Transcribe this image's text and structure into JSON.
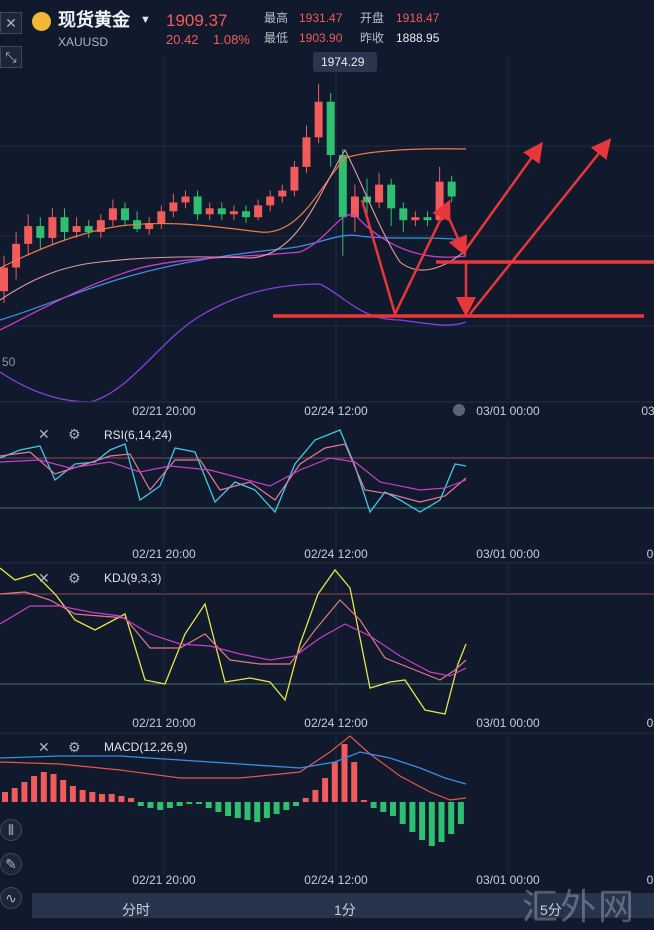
{
  "header": {
    "instrument_name": "现货黄金",
    "symbol": "XAUUSD",
    "price": "1909.37",
    "change": "20.42",
    "change_pct": "1.08%",
    "high_label": "最高",
    "high_value": "1931.47",
    "open_label": "开盘",
    "open_value": "1918.47",
    "low_label": "最低",
    "low_value": "1903.90",
    "prev_label": "昨收",
    "prev_value": "1888.95"
  },
  "main_chart": {
    "peak_label": "1974.29",
    "axis_side_label": "50",
    "ticks": [
      "02/21 20:00",
      "02/24 12:00",
      "03/01 00:00",
      "03"
    ]
  },
  "rsi": {
    "title": "RSI(6,14,24)",
    "ticks": [
      "02/21 20:00",
      "02/24 12:00",
      "03/01 00:00",
      "0"
    ]
  },
  "kdj": {
    "title": "KDJ(9,3,3)",
    "ticks": [
      "02/21 20:00",
      "02/24 12:00",
      "03/01 00:00",
      "0"
    ]
  },
  "macd": {
    "title": "MACD(12,26,9)",
    "ticks": [
      "02/21 20:00",
      "02/24 12:00",
      "03/01 00:00",
      "0"
    ]
  },
  "bottom_bar": {
    "tab1": "分时",
    "tab2": "1分",
    "tab3": "5分"
  },
  "watermark": "汇外网",
  "colors": {
    "up": "#f25b5b",
    "down": "#2fbf71",
    "background": "#101a2c"
  },
  "chart_data": {
    "type": "candlestick",
    "title": "现货黄金 XAUUSD",
    "x_ticks": [
      "02/21 20:00",
      "02/24 12:00",
      "03/01 00:00"
    ],
    "candles": [
      {
        "o": 0.3,
        "c": 0.38,
        "h": 0.42,
        "l": 0.26
      },
      {
        "o": 0.38,
        "c": 0.46,
        "h": 0.5,
        "l": 0.34
      },
      {
        "o": 0.46,
        "c": 0.52,
        "h": 0.56,
        "l": 0.42
      },
      {
        "o": 0.52,
        "c": 0.48,
        "h": 0.55,
        "l": 0.44
      },
      {
        "o": 0.48,
        "c": 0.55,
        "h": 0.58,
        "l": 0.46
      },
      {
        "o": 0.55,
        "c": 0.5,
        "h": 0.58,
        "l": 0.47
      },
      {
        "o": 0.5,
        "c": 0.52,
        "h": 0.55,
        "l": 0.48
      },
      {
        "o": 0.52,
        "c": 0.5,
        "h": 0.54,
        "l": 0.48
      },
      {
        "o": 0.5,
        "c": 0.54,
        "h": 0.56,
        "l": 0.48
      },
      {
        "o": 0.54,
        "c": 0.58,
        "h": 0.61,
        "l": 0.52
      },
      {
        "o": 0.58,
        "c": 0.54,
        "h": 0.6,
        "l": 0.52
      },
      {
        "o": 0.54,
        "c": 0.51,
        "h": 0.57,
        "l": 0.5
      },
      {
        "o": 0.51,
        "c": 0.53,
        "h": 0.55,
        "l": 0.49
      },
      {
        "o": 0.53,
        "c": 0.57,
        "h": 0.59,
        "l": 0.51
      },
      {
        "o": 0.57,
        "c": 0.6,
        "h": 0.63,
        "l": 0.55
      },
      {
        "o": 0.6,
        "c": 0.62,
        "h": 0.64,
        "l": 0.58
      },
      {
        "o": 0.62,
        "c": 0.56,
        "h": 0.64,
        "l": 0.54
      },
      {
        "o": 0.56,
        "c": 0.58,
        "h": 0.6,
        "l": 0.54
      },
      {
        "o": 0.58,
        "c": 0.56,
        "h": 0.6,
        "l": 0.54
      },
      {
        "o": 0.56,
        "c": 0.57,
        "h": 0.59,
        "l": 0.54
      },
      {
        "o": 0.57,
        "c": 0.55,
        "h": 0.59,
        "l": 0.53
      },
      {
        "o": 0.55,
        "c": 0.59,
        "h": 0.61,
        "l": 0.54
      },
      {
        "o": 0.59,
        "c": 0.62,
        "h": 0.64,
        "l": 0.57
      },
      {
        "o": 0.62,
        "c": 0.64,
        "h": 0.66,
        "l": 0.6
      },
      {
        "o": 0.64,
        "c": 0.72,
        "h": 0.74,
        "l": 0.62
      },
      {
        "o": 0.72,
        "c": 0.82,
        "h": 0.86,
        "l": 0.7
      },
      {
        "o": 0.82,
        "c": 0.94,
        "h": 1.0,
        "l": 0.8
      },
      {
        "o": 0.94,
        "c": 0.76,
        "h": 0.97,
        "l": 0.72
      },
      {
        "o": 0.76,
        "c": 0.55,
        "h": 0.78,
        "l": 0.42
      },
      {
        "o": 0.55,
        "c": 0.62,
        "h": 0.66,
        "l": 0.5
      },
      {
        "o": 0.62,
        "c": 0.6,
        "h": 0.68,
        "l": 0.56
      },
      {
        "o": 0.6,
        "c": 0.66,
        "h": 0.7,
        "l": 0.58
      },
      {
        "o": 0.66,
        "c": 0.58,
        "h": 0.68,
        "l": 0.52
      },
      {
        "o": 0.58,
        "c": 0.54,
        "h": 0.6,
        "l": 0.5
      },
      {
        "o": 0.54,
        "c": 0.55,
        "h": 0.57,
        "l": 0.52
      },
      {
        "o": 0.55,
        "c": 0.54,
        "h": 0.57,
        "l": 0.52
      },
      {
        "o": 0.54,
        "c": 0.67,
        "h": 0.72,
        "l": 0.53
      },
      {
        "o": 0.67,
        "c": 0.62,
        "h": 0.69,
        "l": 0.6
      }
    ]
  }
}
